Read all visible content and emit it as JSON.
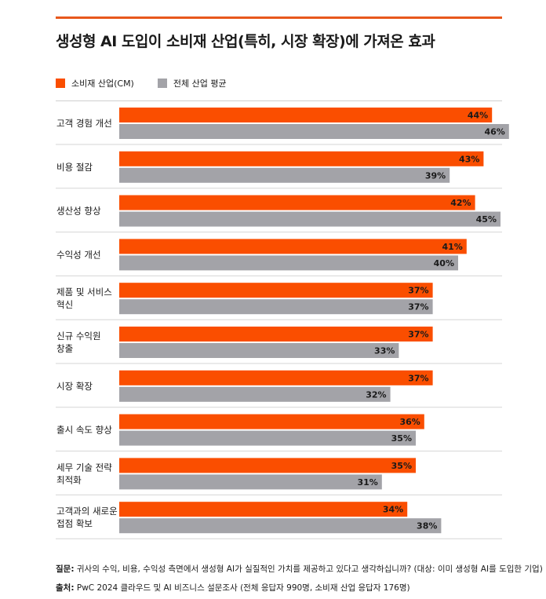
{
  "title": "생성형 AI 도입이 소비재 산업(특히, 시장 확장)에 가져온 효과",
  "colors": {
    "accent": "#fa4e00",
    "secondary": "#a3a3a8",
    "rule": "#e8581c"
  },
  "chart_data": {
    "type": "bar",
    "orientation": "horizontal",
    "categories": [
      [
        "고객 경험 개선"
      ],
      [
        "비용 절감"
      ],
      [
        "생산성 향상"
      ],
      [
        "수익성 개선"
      ],
      [
        "제품 및 서비스",
        "혁신"
      ],
      [
        "신규 수익원",
        "창출"
      ],
      [
        "시장 확장"
      ],
      [
        "출시 속도 향상"
      ],
      [
        "세무 기술 전략",
        "최적화"
      ],
      [
        "고객과의 새로운",
        "접점 확보"
      ]
    ],
    "series": [
      {
        "name": "소비재 산업(CM)",
        "values": [
          44,
          43,
          42,
          41,
          37,
          37,
          37,
          36,
          35,
          34
        ]
      },
      {
        "name": "전체 산업 평균",
        "values": [
          46,
          39,
          45,
          40,
          37,
          33,
          32,
          35,
          31,
          38
        ]
      }
    ],
    "value_suffix": "%",
    "legend_position": "top-left"
  },
  "footer": {
    "question_label": "질문:",
    "question_text": " 귀사의 수익, 비용, 수익성 측면에서 생성형 AI가 실질적인 가치를 제공하고 있다고 생각하십니까? (대상: 이미 생성형 AI를 도입한 기업)",
    "source_label": "출처:",
    "source_text": " PwC 2024 클라우드 및 AI 비즈니스 설문조사 (전체 응답자 990명, 소비재 산업 응답자 176명)"
  }
}
